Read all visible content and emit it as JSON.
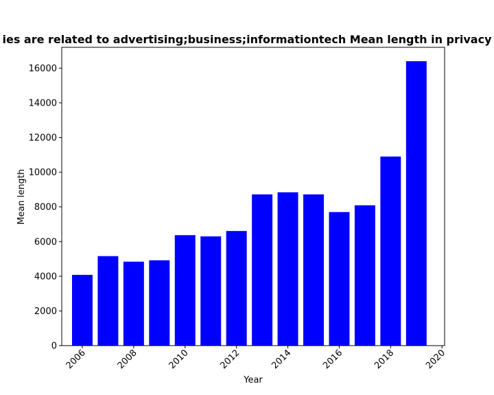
{
  "chart_data": {
    "type": "bar",
    "title": "ies are related to advertising;business;informationtech Mean length in privacy",
    "xlabel": "Year",
    "ylabel": "Mean length",
    "x": [
      2006,
      2007,
      2008,
      2009,
      2010,
      2011,
      2012,
      2013,
      2014,
      2015,
      2016,
      2017,
      2018,
      2019
    ],
    "values": [
      4080,
      5160,
      4840,
      4920,
      6370,
      6300,
      6610,
      8720,
      8840,
      8720,
      7700,
      8090,
      10900,
      16400
    ],
    "bar_color": "#0000ff",
    "xlim": [
      2005.2,
      2020.1
    ],
    "ylim": [
      0,
      17200
    ],
    "xticks": [
      "2006",
      "2008",
      "2010",
      "2012",
      "2014",
      "2016",
      "2018",
      "2020"
    ],
    "yticks": [
      "0",
      "2000",
      "4000",
      "6000",
      "8000",
      "10000",
      "12000",
      "14000",
      "16000"
    ],
    "grid": false,
    "legend": "none"
  }
}
